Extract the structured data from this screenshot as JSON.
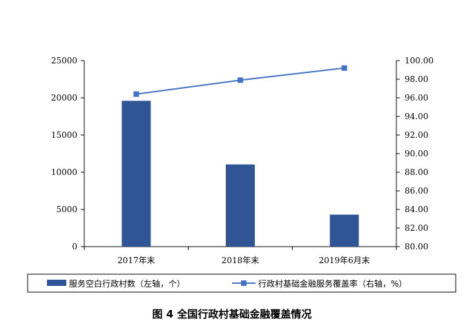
{
  "chart_data": {
    "type": "bar+line",
    "categories": [
      "2017年末",
      "2018年末",
      "2019年6月末"
    ],
    "series": [
      {
        "name": "服务空白行政村数（左轴，个）",
        "type": "bar",
        "axis": "left",
        "values": [
          19600,
          11050,
          4300
        ],
        "color": "#2F5597"
      },
      {
        "name": "行政村基础金融服务覆盖率（右轴，%）",
        "type": "line",
        "axis": "right",
        "values": [
          96.4,
          97.9,
          99.2
        ],
        "color": "#4472C4",
        "marker": "square"
      }
    ],
    "y_left": {
      "ylim": [
        0,
        25000
      ],
      "ticks": [
        "0",
        "5000",
        "10000",
        "15000",
        "20000",
        "25000"
      ],
      "tick_values": [
        0,
        5000,
        10000,
        15000,
        20000,
        25000
      ]
    },
    "y_right": {
      "ylim": [
        80,
        100
      ],
      "ticks": [
        "80.00",
        "82.00",
        "84.00",
        "86.00",
        "88.00",
        "90.00",
        "92.00",
        "94.00",
        "96.00",
        "98.00",
        "100.00"
      ],
      "tick_values": [
        80,
        82,
        84,
        86,
        88,
        90,
        92,
        94,
        96,
        98,
        100
      ]
    },
    "grid": false,
    "legend_position": "bottom",
    "caption": "图 4  全国行政村基础金融覆盖情况"
  }
}
